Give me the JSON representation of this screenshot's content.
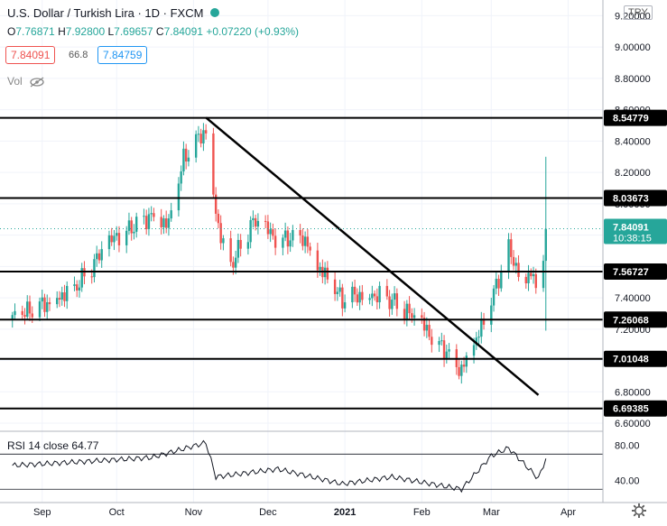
{
  "header": {
    "title": "U.S. Dollar / Turkish Lira · 1D · FXCM",
    "ohlc": {
      "o_label": "O",
      "o": "7.76871",
      "h_label": "H",
      "h": "7.92800",
      "l_label": "L",
      "l": "7.69657",
      "c_label": "C",
      "c": "7.84091",
      "chg": "+0.07220 (+0.93%)"
    },
    "bid": "7.84091",
    "spread": "66.8",
    "ask": "7.84759",
    "vol_label": "Vol",
    "currency": "TRY"
  },
  "colors": {
    "up": "#26a69a",
    "down": "#ef5350",
    "bid": "#ef5350",
    "ask": "#2196f3",
    "price_badge": "#26a69a",
    "line": "#000000"
  },
  "chart_data": [
    {
      "type": "candlestick",
      "symbol": "USD/TRY",
      "interval": "1D",
      "y_ticks": [
        "9.20000",
        "9.00000",
        "8.80000",
        "8.60000",
        "8.40000",
        "8.20000",
        "8.00000",
        "7.80000",
        "7.60000",
        "7.40000",
        "7.20000",
        "7.00000",
        "6.80000",
        "6.60000"
      ],
      "x_ticks": [
        "Sep",
        "Oct",
        "Nov",
        "Dec",
        "2021",
        "Feb",
        "Mar",
        "Apr"
      ],
      "ylim": [
        6.56,
        9.3
      ],
      "horizontal_levels": [
        "8.54779",
        "8.03673",
        "7.56727",
        "7.26068",
        "7.01048",
        "6.69385"
      ],
      "trendline": {
        "from": [
          "2020-11-06",
          8.55
        ],
        "to": [
          "2021-03-20",
          6.78
        ]
      },
      "last_price": "7.84091",
      "countdown": "10:38:15",
      "series": [
        {
          "date": "2020-08-20",
          "close": 7.26
        },
        {
          "date": "2020-09-01",
          "close": 7.35
        },
        {
          "date": "2020-09-15",
          "close": 7.48
        },
        {
          "date": "2020-09-25",
          "close": 7.68
        },
        {
          "date": "2020-10-01",
          "close": 7.8
        },
        {
          "date": "2020-10-15",
          "close": 7.93
        },
        {
          "date": "2020-10-22",
          "close": 7.86
        },
        {
          "date": "2020-10-28",
          "close": 8.28
        },
        {
          "date": "2020-11-06",
          "close": 8.48
        },
        {
          "date": "2020-11-10",
          "close": 7.95
        },
        {
          "date": "2020-11-15",
          "close": 7.58
        },
        {
          "date": "2020-11-25",
          "close": 7.88
        },
        {
          "date": "2020-12-05",
          "close": 7.78
        },
        {
          "date": "2020-12-15",
          "close": 7.8
        },
        {
          "date": "2020-12-20",
          "close": 7.62
        },
        {
          "date": "2020-12-31",
          "close": 7.38
        },
        {
          "date": "2021-01-10",
          "close": 7.44
        },
        {
          "date": "2021-01-20",
          "close": 7.38
        },
        {
          "date": "2021-01-31",
          "close": 7.24
        },
        {
          "date": "2021-02-10",
          "close": 7.08
        },
        {
          "date": "2021-02-17",
          "close": 6.94
        },
        {
          "date": "2021-02-25",
          "close": 7.2
        },
        {
          "date": "2021-03-01",
          "close": 7.38
        },
        {
          "date": "2021-03-08",
          "close": 7.7
        },
        {
          "date": "2021-03-14",
          "close": 7.52
        },
        {
          "date": "2021-03-18",
          "close": 7.58
        },
        {
          "date": "2021-03-20",
          "close": 7.2
        },
        {
          "date": "2021-03-23",
          "close": 7.84
        }
      ]
    },
    {
      "type": "line",
      "title": "RSI 14 close",
      "value": "64.77",
      "y_ticks": [
        "80.00",
        "40.00"
      ],
      "ylim": [
        22,
        96
      ],
      "bands": [
        70,
        30
      ],
      "series": [
        {
          "date": "2020-08-20",
          "value": 57
        },
        {
          "date": "2020-09-15",
          "value": 61
        },
        {
          "date": "2020-10-15",
          "value": 66
        },
        {
          "date": "2020-11-06",
          "value": 83
        },
        {
          "date": "2020-11-10",
          "value": 44
        },
        {
          "date": "2020-12-05",
          "value": 53
        },
        {
          "date": "2020-12-31",
          "value": 36
        },
        {
          "date": "2021-01-20",
          "value": 44
        },
        {
          "date": "2021-02-17",
          "value": 30
        },
        {
          "date": "2021-03-01",
          "value": 68
        },
        {
          "date": "2021-03-08",
          "value": 77
        },
        {
          "date": "2021-03-20",
          "value": 42
        },
        {
          "date": "2021-03-23",
          "value": 65
        }
      ]
    }
  ]
}
